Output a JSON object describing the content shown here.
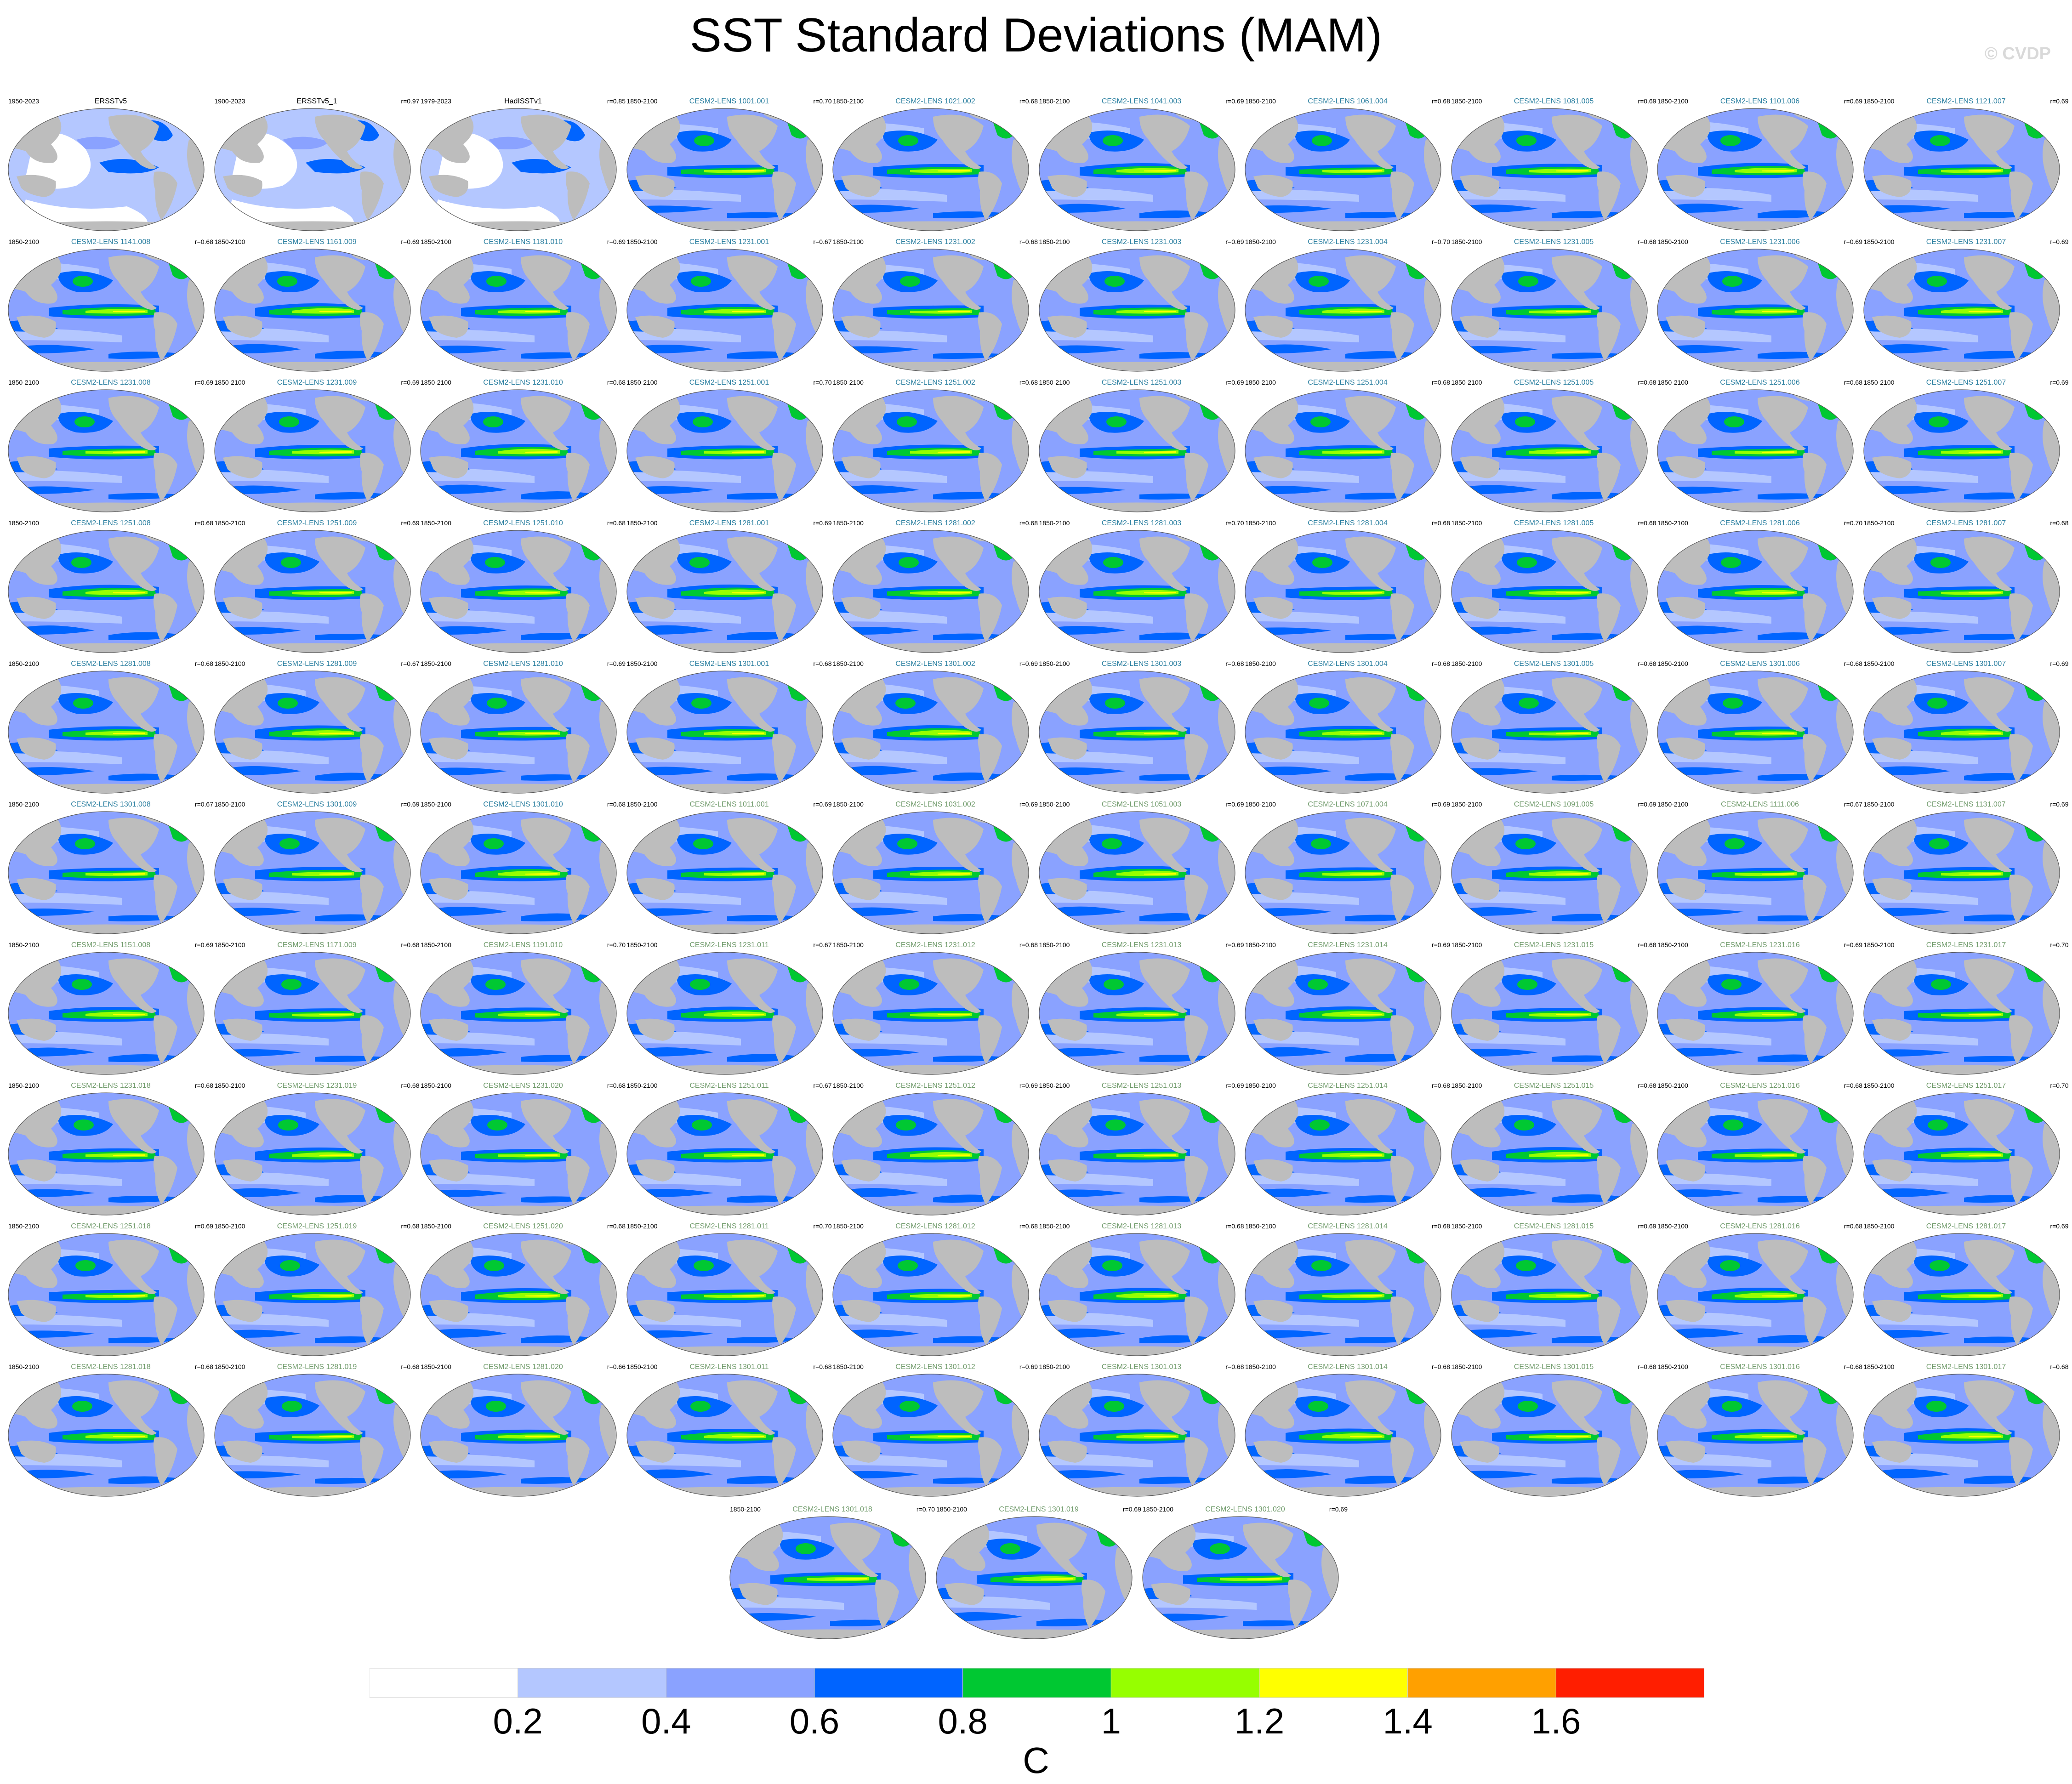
{
  "title": "SST Standard Deviations (MAM)",
  "credit": "© CVDP",
  "panels": [
    {
      "name": "ERSSTv5",
      "years": "1950-2023",
      "r": "",
      "style": "obs",
      "kind": "obs"
    },
    {
      "name": "ERSSTv5_1",
      "years": "1900-2023",
      "r": "r=0.97",
      "style": "obs",
      "kind": "obs"
    },
    {
      "name": "HadISSTv1",
      "years": "1979-2023",
      "r": "r=0.85",
      "style": "obs",
      "kind": "obs"
    },
    {
      "name": "CESM2-LENS 1001.001",
      "years": "1850-2100",
      "r": "r=0.70",
      "style": "cmip",
      "kind": "model"
    },
    {
      "name": "CESM2-LENS 1021.002",
      "years": "1850-2100",
      "r": "r=0.68",
      "style": "cmip",
      "kind": "model"
    },
    {
      "name": "CESM2-LENS 1041.003",
      "years": "1850-2100",
      "r": "r=0.69",
      "style": "cmip",
      "kind": "model"
    },
    {
      "name": "CESM2-LENS 1061.004",
      "years": "1850-2100",
      "r": "r=0.68",
      "style": "cmip",
      "kind": "model"
    },
    {
      "name": "CESM2-LENS 1081.005",
      "years": "1850-2100",
      "r": "r=0.69",
      "style": "cmip",
      "kind": "model"
    },
    {
      "name": "CESM2-LENS 1101.006",
      "years": "1850-2100",
      "r": "r=0.69",
      "style": "cmip",
      "kind": "model"
    },
    {
      "name": "CESM2-LENS 1121.007",
      "years": "1850-2100",
      "r": "r=0.69",
      "style": "cmip",
      "kind": "model"
    },
    {
      "name": "CESM2-LENS 1141.008",
      "years": "1850-2100",
      "r": "r=0.68",
      "style": "cmip",
      "kind": "model"
    },
    {
      "name": "CESM2-LENS 1161.009",
      "years": "1850-2100",
      "r": "r=0.69",
      "style": "cmip",
      "kind": "model"
    },
    {
      "name": "CESM2-LENS 1181.010",
      "years": "1850-2100",
      "r": "r=0.69",
      "style": "cmip",
      "kind": "model"
    },
    {
      "name": "CESM2-LENS 1231.001",
      "years": "1850-2100",
      "r": "r=0.67",
      "style": "cmip",
      "kind": "model"
    },
    {
      "name": "CESM2-LENS 1231.002",
      "years": "1850-2100",
      "r": "r=0.68",
      "style": "cmip",
      "kind": "model"
    },
    {
      "name": "CESM2-LENS 1231.003",
      "years": "1850-2100",
      "r": "r=0.69",
      "style": "cmip",
      "kind": "model"
    },
    {
      "name": "CESM2-LENS 1231.004",
      "years": "1850-2100",
      "r": "r=0.70",
      "style": "cmip",
      "kind": "model"
    },
    {
      "name": "CESM2-LENS 1231.005",
      "years": "1850-2100",
      "r": "r=0.68",
      "style": "cmip",
      "kind": "model"
    },
    {
      "name": "CESM2-LENS 1231.006",
      "years": "1850-2100",
      "r": "r=0.69",
      "style": "cmip",
      "kind": "model"
    },
    {
      "name": "CESM2-LENS 1231.007",
      "years": "1850-2100",
      "r": "r=0.69",
      "style": "cmip",
      "kind": "model"
    },
    {
      "name": "CESM2-LENS 1231.008",
      "years": "1850-2100",
      "r": "r=0.69",
      "style": "cmip",
      "kind": "model"
    },
    {
      "name": "CESM2-LENS 1231.009",
      "years": "1850-2100",
      "r": "r=0.69",
      "style": "cmip",
      "kind": "model"
    },
    {
      "name": "CESM2-LENS 1231.010",
      "years": "1850-2100",
      "r": "r=0.68",
      "style": "cmip",
      "kind": "model"
    },
    {
      "name": "CESM2-LENS 1251.001",
      "years": "1850-2100",
      "r": "r=0.70",
      "style": "cmip",
      "kind": "model"
    },
    {
      "name": "CESM2-LENS 1251.002",
      "years": "1850-2100",
      "r": "r=0.68",
      "style": "cmip",
      "kind": "model"
    },
    {
      "name": "CESM2-LENS 1251.003",
      "years": "1850-2100",
      "r": "r=0.69",
      "style": "cmip",
      "kind": "model"
    },
    {
      "name": "CESM2-LENS 1251.004",
      "years": "1850-2100",
      "r": "r=0.68",
      "style": "cmip",
      "kind": "model"
    },
    {
      "name": "CESM2-LENS 1251.005",
      "years": "1850-2100",
      "r": "r=0.68",
      "style": "cmip",
      "kind": "model"
    },
    {
      "name": "CESM2-LENS 1251.006",
      "years": "1850-2100",
      "r": "r=0.68",
      "style": "cmip",
      "kind": "model"
    },
    {
      "name": "CESM2-LENS 1251.007",
      "years": "1850-2100",
      "r": "r=0.69",
      "style": "cmip",
      "kind": "model"
    },
    {
      "name": "CESM2-LENS 1251.008",
      "years": "1850-2100",
      "r": "r=0.68",
      "style": "cmip",
      "kind": "model"
    },
    {
      "name": "CESM2-LENS 1251.009",
      "years": "1850-2100",
      "r": "r=0.69",
      "style": "cmip",
      "kind": "model"
    },
    {
      "name": "CESM2-LENS 1251.010",
      "years": "1850-2100",
      "r": "r=0.68",
      "style": "cmip",
      "kind": "model"
    },
    {
      "name": "CESM2-LENS 1281.001",
      "years": "1850-2100",
      "r": "r=0.69",
      "style": "cmip",
      "kind": "model"
    },
    {
      "name": "CESM2-LENS 1281.002",
      "years": "1850-2100",
      "r": "r=0.68",
      "style": "cmip",
      "kind": "model"
    },
    {
      "name": "CESM2-LENS 1281.003",
      "years": "1850-2100",
      "r": "r=0.70",
      "style": "cmip",
      "kind": "model"
    },
    {
      "name": "CESM2-LENS 1281.004",
      "years": "1850-2100",
      "r": "r=0.68",
      "style": "cmip",
      "kind": "model"
    },
    {
      "name": "CESM2-LENS 1281.005",
      "years": "1850-2100",
      "r": "r=0.68",
      "style": "cmip",
      "kind": "model"
    },
    {
      "name": "CESM2-LENS 1281.006",
      "years": "1850-2100",
      "r": "r=0.70",
      "style": "cmip",
      "kind": "model"
    },
    {
      "name": "CESM2-LENS 1281.007",
      "years": "1850-2100",
      "r": "r=0.68",
      "style": "cmip",
      "kind": "model"
    },
    {
      "name": "CESM2-LENS 1281.008",
      "years": "1850-2100",
      "r": "r=0.68",
      "style": "cmip",
      "kind": "model"
    },
    {
      "name": "CESM2-LENS 1281.009",
      "years": "1850-2100",
      "r": "r=0.67",
      "style": "cmip",
      "kind": "model"
    },
    {
      "name": "CESM2-LENS 1281.010",
      "years": "1850-2100",
      "r": "r=0.69",
      "style": "cmip",
      "kind": "model"
    },
    {
      "name": "CESM2-LENS 1301.001",
      "years": "1850-2100",
      "r": "r=0.68",
      "style": "cmip",
      "kind": "model"
    },
    {
      "name": "CESM2-LENS 1301.002",
      "years": "1850-2100",
      "r": "r=0.69",
      "style": "cmip",
      "kind": "model"
    },
    {
      "name": "CESM2-LENS 1301.003",
      "years": "1850-2100",
      "r": "r=0.68",
      "style": "cmip",
      "kind": "model"
    },
    {
      "name": "CESM2-LENS 1301.004",
      "years": "1850-2100",
      "r": "r=0.68",
      "style": "cmip",
      "kind": "model"
    },
    {
      "name": "CESM2-LENS 1301.005",
      "years": "1850-2100",
      "r": "r=0.68",
      "style": "cmip",
      "kind": "model"
    },
    {
      "name": "CESM2-LENS 1301.006",
      "years": "1850-2100",
      "r": "r=0.68",
      "style": "cmip",
      "kind": "model"
    },
    {
      "name": "CESM2-LENS 1301.007",
      "years": "1850-2100",
      "r": "r=0.69",
      "style": "cmip",
      "kind": "model"
    },
    {
      "name": "CESM2-LENS 1301.008",
      "years": "1850-2100",
      "r": "r=0.67",
      "style": "cmip",
      "kind": "model"
    },
    {
      "name": "CESM2-LENS 1301.009",
      "years": "1850-2100",
      "r": "r=0.69",
      "style": "cmip",
      "kind": "model"
    },
    {
      "name": "CESM2-LENS 1301.010",
      "years": "1850-2100",
      "r": "r=0.68",
      "style": "cmip",
      "kind": "model"
    },
    {
      "name": "CESM2-LENS 1011.001",
      "years": "1850-2100",
      "r": "r=0.69",
      "style": "cesm",
      "kind": "model"
    },
    {
      "name": "CESM2-LENS 1031.002",
      "years": "1850-2100",
      "r": "r=0.69",
      "style": "cesm",
      "kind": "model"
    },
    {
      "name": "CESM2-LENS 1051.003",
      "years": "1850-2100",
      "r": "r=0.69",
      "style": "cesm",
      "kind": "model"
    },
    {
      "name": "CESM2-LENS 1071.004",
      "years": "1850-2100",
      "r": "r=0.69",
      "style": "cesm",
      "kind": "model"
    },
    {
      "name": "CESM2-LENS 1091.005",
      "years": "1850-2100",
      "r": "r=0.69",
      "style": "cesm",
      "kind": "model"
    },
    {
      "name": "CESM2-LENS 1111.006",
      "years": "1850-2100",
      "r": "r=0.67",
      "style": "cesm",
      "kind": "model"
    },
    {
      "name": "CESM2-LENS 1131.007",
      "years": "1850-2100",
      "r": "r=0.69",
      "style": "cesm",
      "kind": "model"
    },
    {
      "name": "CESM2-LENS 1151.008",
      "years": "1850-2100",
      "r": "r=0.69",
      "style": "cesm",
      "kind": "model"
    },
    {
      "name": "CESM2-LENS 1171.009",
      "years": "1850-2100",
      "r": "r=0.68",
      "style": "cesm",
      "kind": "model"
    },
    {
      "name": "CESM2-LENS 1191.010",
      "years": "1850-2100",
      "r": "r=0.70",
      "style": "cesm",
      "kind": "model"
    },
    {
      "name": "CESM2-LENS 1231.011",
      "years": "1850-2100",
      "r": "r=0.67",
      "style": "cesm",
      "kind": "model"
    },
    {
      "name": "CESM2-LENS 1231.012",
      "years": "1850-2100",
      "r": "r=0.68",
      "style": "cesm",
      "kind": "model"
    },
    {
      "name": "CESM2-LENS 1231.013",
      "years": "1850-2100",
      "r": "r=0.69",
      "style": "cesm",
      "kind": "model"
    },
    {
      "name": "CESM2-LENS 1231.014",
      "years": "1850-2100",
      "r": "r=0.69",
      "style": "cesm",
      "kind": "model"
    },
    {
      "name": "CESM2-LENS 1231.015",
      "years": "1850-2100",
      "r": "r=0.68",
      "style": "cesm",
      "kind": "model"
    },
    {
      "name": "CESM2-LENS 1231.016",
      "years": "1850-2100",
      "r": "r=0.69",
      "style": "cesm",
      "kind": "model"
    },
    {
      "name": "CESM2-LENS 1231.017",
      "years": "1850-2100",
      "r": "r=0.70",
      "style": "cesm",
      "kind": "model"
    },
    {
      "name": "CESM2-LENS 1231.018",
      "years": "1850-2100",
      "r": "r=0.68",
      "style": "cesm",
      "kind": "model"
    },
    {
      "name": "CESM2-LENS 1231.019",
      "years": "1850-2100",
      "r": "r=0.68",
      "style": "cesm",
      "kind": "model"
    },
    {
      "name": "CESM2-LENS 1231.020",
      "years": "1850-2100",
      "r": "r=0.68",
      "style": "cesm",
      "kind": "model"
    },
    {
      "name": "CESM2-LENS 1251.011",
      "years": "1850-2100",
      "r": "r=0.67",
      "style": "cesm",
      "kind": "model"
    },
    {
      "name": "CESM2-LENS 1251.012",
      "years": "1850-2100",
      "r": "r=0.69",
      "style": "cesm",
      "kind": "model"
    },
    {
      "name": "CESM2-LENS 1251.013",
      "years": "1850-2100",
      "r": "r=0.69",
      "style": "cesm",
      "kind": "model"
    },
    {
      "name": "CESM2-LENS 1251.014",
      "years": "1850-2100",
      "r": "r=0.68",
      "style": "cesm",
      "kind": "model"
    },
    {
      "name": "CESM2-LENS 1251.015",
      "years": "1850-2100",
      "r": "r=0.68",
      "style": "cesm",
      "kind": "model"
    },
    {
      "name": "CESM2-LENS 1251.016",
      "years": "1850-2100",
      "r": "r=0.68",
      "style": "cesm",
      "kind": "model"
    },
    {
      "name": "CESM2-LENS 1251.017",
      "years": "1850-2100",
      "r": "r=0.70",
      "style": "cesm",
      "kind": "model"
    },
    {
      "name": "CESM2-LENS 1251.018",
      "years": "1850-2100",
      "r": "r=0.69",
      "style": "cesm",
      "kind": "model"
    },
    {
      "name": "CESM2-LENS 1251.019",
      "years": "1850-2100",
      "r": "r=0.68",
      "style": "cesm",
      "kind": "model"
    },
    {
      "name": "CESM2-LENS 1251.020",
      "years": "1850-2100",
      "r": "r=0.68",
      "style": "cesm",
      "kind": "model"
    },
    {
      "name": "CESM2-LENS 1281.011",
      "years": "1850-2100",
      "r": "r=0.70",
      "style": "cesm",
      "kind": "model"
    },
    {
      "name": "CESM2-LENS 1281.012",
      "years": "1850-2100",
      "r": "r=0.68",
      "style": "cesm",
      "kind": "model"
    },
    {
      "name": "CESM2-LENS 1281.013",
      "years": "1850-2100",
      "r": "r=0.68",
      "style": "cesm",
      "kind": "model"
    },
    {
      "name": "CESM2-LENS 1281.014",
      "years": "1850-2100",
      "r": "r=0.68",
      "style": "cesm",
      "kind": "model"
    },
    {
      "name": "CESM2-LENS 1281.015",
      "years": "1850-2100",
      "r": "r=0.69",
      "style": "cesm",
      "kind": "model"
    },
    {
      "name": "CESM2-LENS 1281.016",
      "years": "1850-2100",
      "r": "r=0.68",
      "style": "cesm",
      "kind": "model"
    },
    {
      "name": "CESM2-LENS 1281.017",
      "years": "1850-2100",
      "r": "r=0.69",
      "style": "cesm",
      "kind": "model"
    },
    {
      "name": "CESM2-LENS 1281.018",
      "years": "1850-2100",
      "r": "r=0.68",
      "style": "cesm",
      "kind": "model"
    },
    {
      "name": "CESM2-LENS 1281.019",
      "years": "1850-2100",
      "r": "r=0.68",
      "style": "cesm",
      "kind": "model"
    },
    {
      "name": "CESM2-LENS 1281.020",
      "years": "1850-2100",
      "r": "r=0.66",
      "style": "cesm",
      "kind": "model"
    },
    {
      "name": "CESM2-LENS 1301.011",
      "years": "1850-2100",
      "r": "r=0.68",
      "style": "cesm",
      "kind": "model"
    },
    {
      "name": "CESM2-LENS 1301.012",
      "years": "1850-2100",
      "r": "r=0.69",
      "style": "cesm",
      "kind": "model"
    },
    {
      "name": "CESM2-LENS 1301.013",
      "years": "1850-2100",
      "r": "r=0.68",
      "style": "cesm",
      "kind": "model"
    },
    {
      "name": "CESM2-LENS 1301.014",
      "years": "1850-2100",
      "r": "r=0.68",
      "style": "cesm",
      "kind": "model"
    },
    {
      "name": "CESM2-LENS 1301.015",
      "years": "1850-2100",
      "r": "r=0.68",
      "style": "cesm",
      "kind": "model"
    },
    {
      "name": "CESM2-LENS 1301.016",
      "years": "1850-2100",
      "r": "r=0.68",
      "style": "cesm",
      "kind": "model"
    },
    {
      "name": "CESM2-LENS 1301.017",
      "years": "1850-2100",
      "r": "r=0.68",
      "style": "cesm",
      "kind": "model"
    },
    {
      "name": "CESM2-LENS 1301.018",
      "years": "1850-2100",
      "r": "r=0.70",
      "style": "cesm",
      "kind": "model"
    },
    {
      "name": "CESM2-LENS 1301.019",
      "years": "1850-2100",
      "r": "r=0.69",
      "style": "cesm",
      "kind": "model"
    },
    {
      "name": "CESM2-LENS 1301.020",
      "years": "1850-2100",
      "r": "r=0.69",
      "style": "cesm",
      "kind": "model"
    }
  ],
  "colorbar": {
    "colors": [
      "#ffffff",
      "#b4c7ff",
      "#8aa2ff",
      "#0064ff",
      "#00c832",
      "#96ff00",
      "#ffff00",
      "#ffa000",
      "#ff1e00"
    ],
    "ticks": [
      "0.2",
      "0.4",
      "0.6",
      "0.8",
      "1",
      "1.2",
      "1.4",
      "1.6"
    ],
    "unit": "C"
  },
  "map_colors": {
    "land": "#bdbdbd",
    "ocean_base": "#8aa2ff",
    "ocean_low": "#b4c7ff",
    "ocean_mid": "#0064ff",
    "band_green": "#00c832",
    "band_yellowgreen": "#96ff00",
    "band_yellow": "#ffff00",
    "obs_low": "#ffffff"
  }
}
